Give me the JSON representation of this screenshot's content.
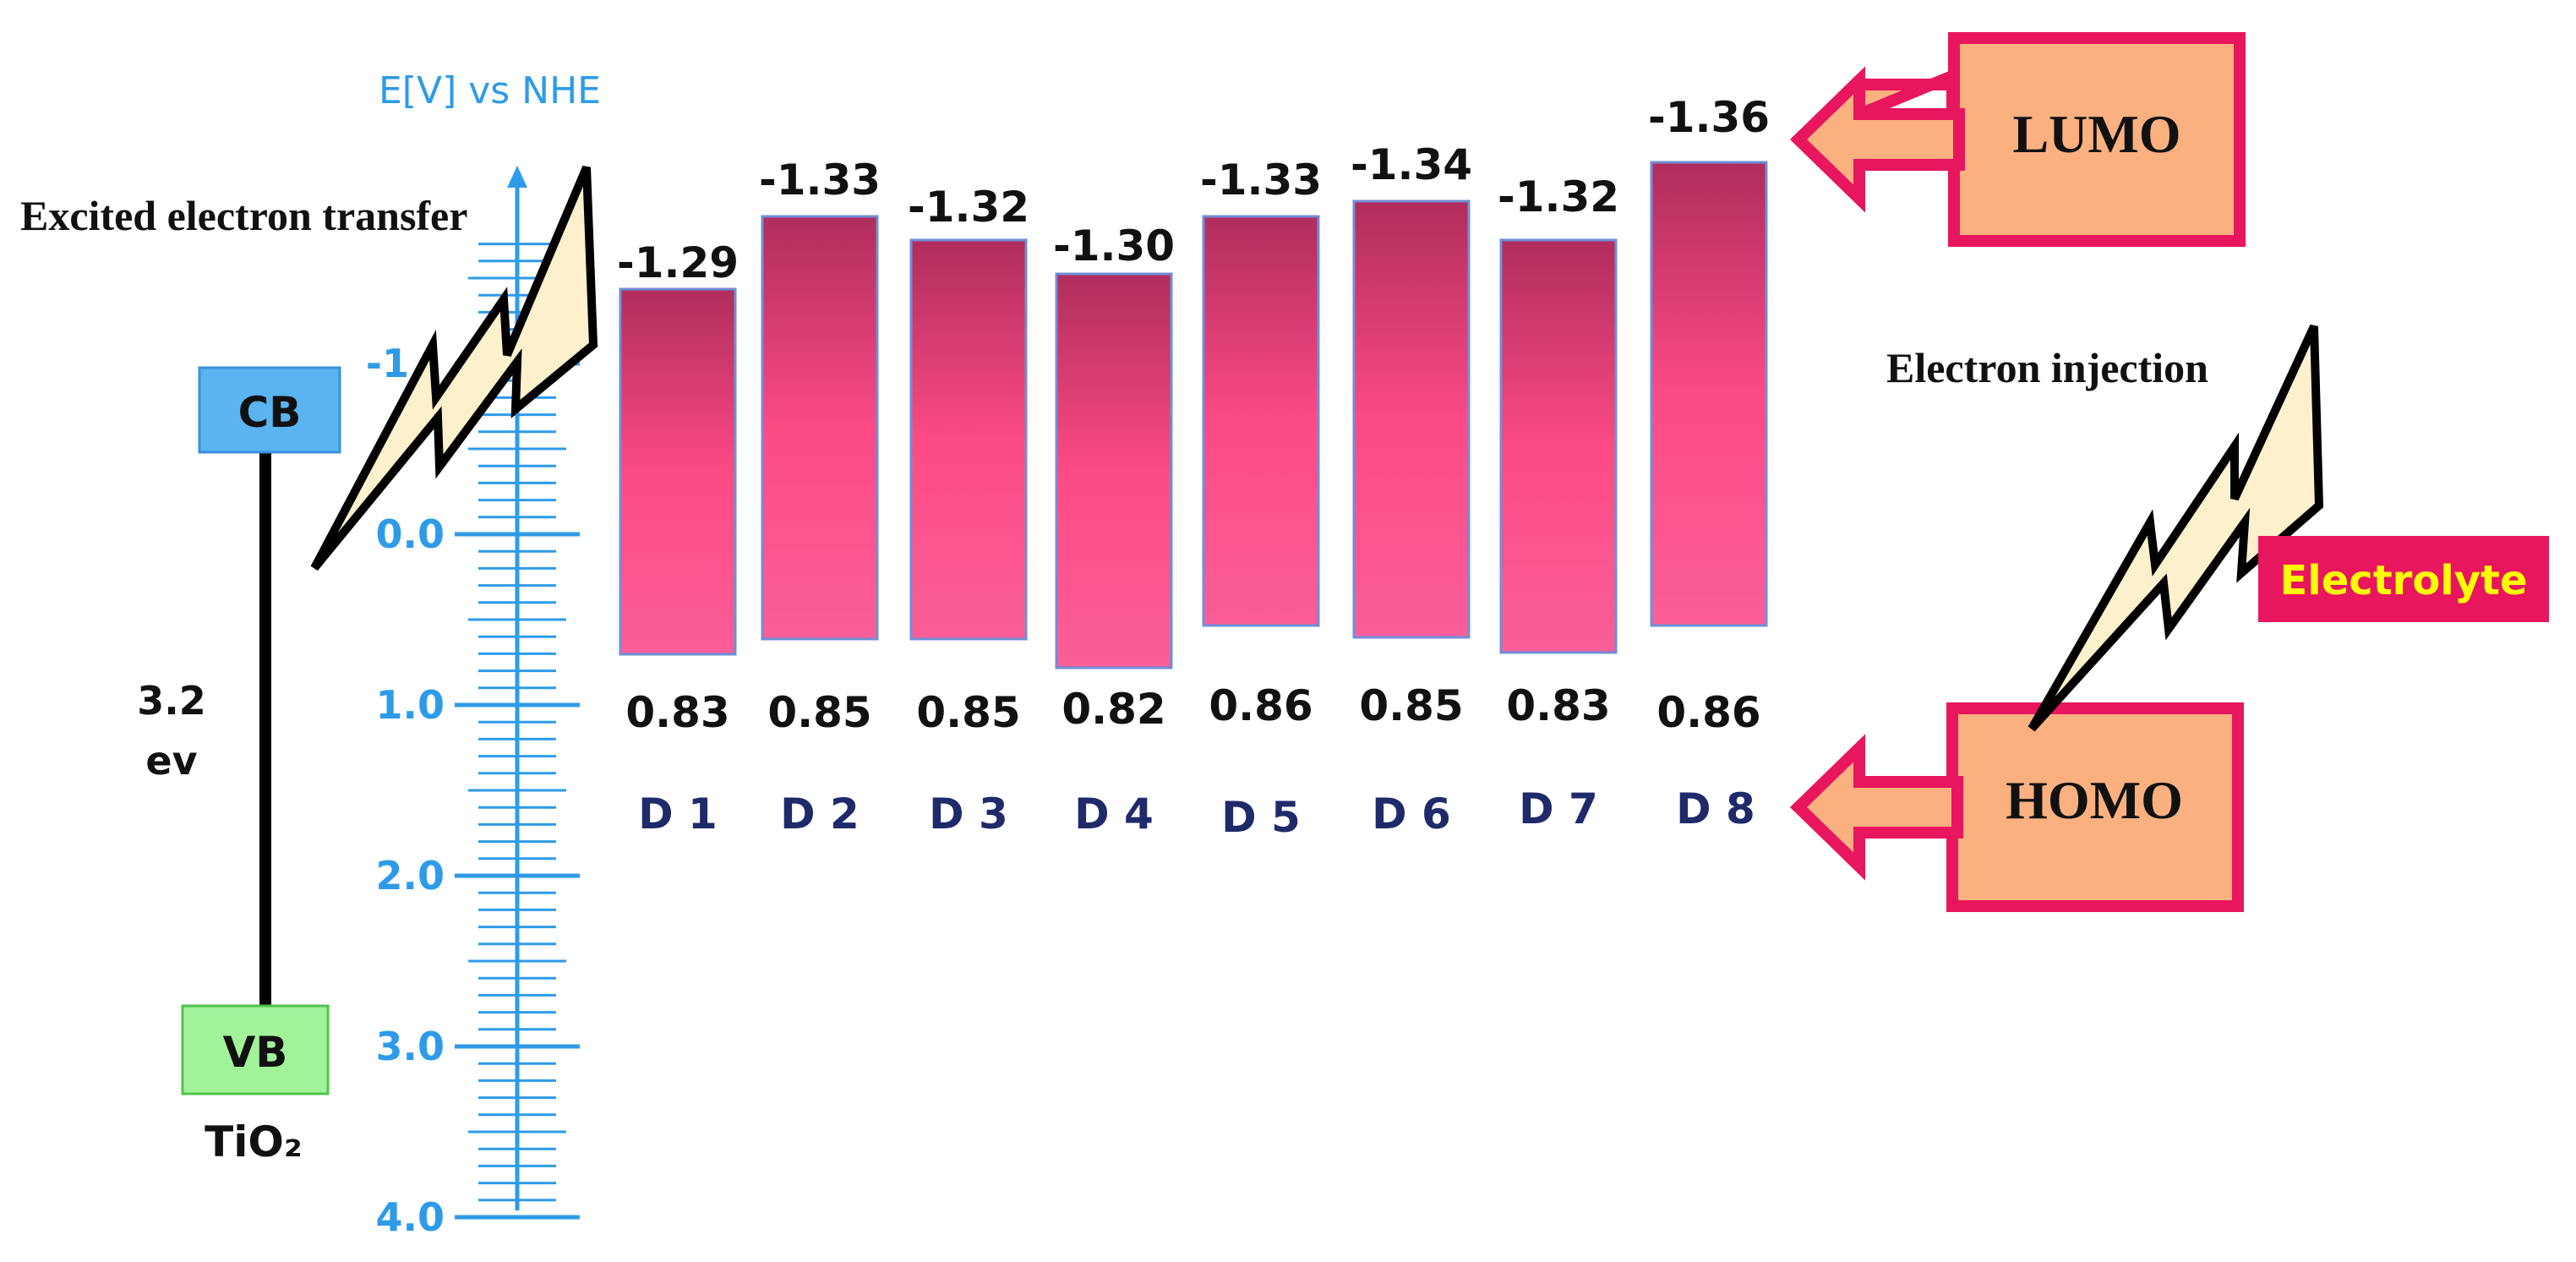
{
  "axis": {
    "title": "E[V] vs NHE",
    "tick_labels": [
      "-1",
      "0.0",
      "1.0",
      "2.0",
      "3.0",
      "4.0"
    ],
    "tick_values": [
      -1,
      0,
      1,
      2,
      3,
      4
    ],
    "range": [
      -2,
      4
    ],
    "color": "#2e9be8"
  },
  "chart_data": {
    "type": "bar",
    "categories": [
      "D 1",
      "D 2",
      "D 3",
      "D 4",
      "D 5",
      "D 6",
      "D 7",
      "D 8"
    ],
    "series": [
      {
        "name": "LUMO",
        "values": [
          -1.29,
          -1.33,
          -1.32,
          -1.3,
          -1.33,
          -1.34,
          -1.32,
          -1.36
        ]
      },
      {
        "name": "HOMO",
        "values": [
          0.83,
          0.85,
          0.85,
          0.82,
          0.86,
          0.85,
          0.83,
          0.86
        ]
      }
    ],
    "lumo_labels": [
      "-1.29",
      "-1.33",
      "-1.32",
      "-1.30",
      "-1.33",
      "-1.34",
      "-1.32",
      "-1.36"
    ],
    "homo_labels": [
      "0.83",
      "0.85",
      "0.85",
      "0.82",
      "0.86",
      "0.85",
      "0.83",
      "0.86"
    ],
    "bar_gradient": [
      "#b02d5d",
      "#fc4a85",
      "#fa5e99"
    ]
  },
  "tio2": {
    "cb_label": "CB",
    "vb_label": "VB",
    "gap_value": "3.2",
    "gap_unit": "ev",
    "material": "TiO₂",
    "cb_color": "#5ab4f0",
    "vb_color": "#a2f29a"
  },
  "annotations": {
    "excited_transfer": "Excited electron transfer",
    "electron_injection": "Electron injection",
    "electrolyte": "Electrolyte",
    "lumo": "LUMO",
    "homo": "HOMO"
  },
  "colors": {
    "arrow_fill": "#fbb080",
    "arrow_stroke": "#e8155f",
    "bolt_fill": "#fdf0cc",
    "electrolyte_bg": "#e8155f",
    "electrolyte_text": "#ffff00",
    "dye_label": "#1f2a6b"
  }
}
